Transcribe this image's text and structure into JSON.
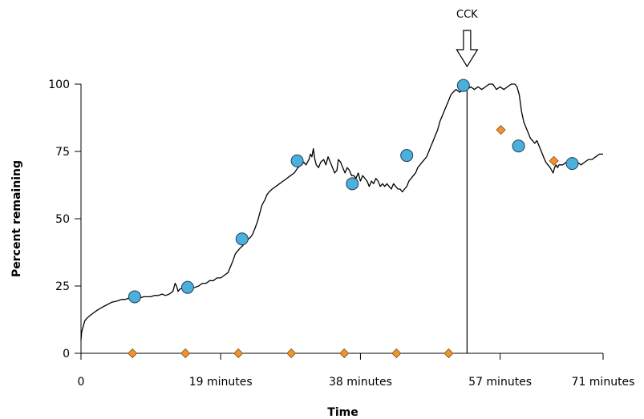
{
  "chart_data": {
    "type": "line",
    "title": "",
    "xlabel": "Time",
    "ylabel": "Percent remaining",
    "xlim": [
      0,
      71
    ],
    "ylim": [
      0,
      100
    ],
    "y_ticks": [
      0,
      25,
      50,
      75,
      100
    ],
    "x_ticks": [
      {
        "value": 0,
        "label": "0"
      },
      {
        "value": 19,
        "label": "19 minutes"
      },
      {
        "value": 38,
        "label": "38 minutes"
      },
      {
        "value": 57,
        "label": "57 minutes"
      },
      {
        "value": 71,
        "label": "71 minutes"
      }
    ],
    "grid": false,
    "legend": "none",
    "colors": {
      "trace": "#000000",
      "circle_fill": "#4bb0dc",
      "circle_stroke": "#1f3f5a",
      "diamond_fill": "#f0922e",
      "diamond_stroke": "#7a4a12"
    },
    "series": [
      {
        "style": "trace",
        "points": [
          [
            0.0,
            5
          ],
          [
            0.1,
            8
          ],
          [
            0.3,
            10
          ],
          [
            0.5,
            12
          ],
          [
            0.8,
            13
          ],
          [
            1.2,
            14
          ],
          [
            1.7,
            15
          ],
          [
            2.2,
            16
          ],
          [
            2.8,
            17
          ],
          [
            3.5,
            18
          ],
          [
            4.2,
            19
          ],
          [
            5.0,
            19.5
          ],
          [
            5.5,
            20
          ],
          [
            6.0,
            20
          ],
          [
            6.5,
            20.5
          ],
          [
            7.0,
            21
          ],
          [
            7.5,
            21
          ],
          [
            8.0,
            20.5
          ],
          [
            8.5,
            21
          ],
          [
            9.0,
            21
          ],
          [
            9.5,
            21
          ],
          [
            10.0,
            21.5
          ],
          [
            10.5,
            21.5
          ],
          [
            11.0,
            22
          ],
          [
            11.5,
            21.5
          ],
          [
            12.0,
            22
          ],
          [
            12.5,
            23
          ],
          [
            12.8,
            26
          ],
          [
            13.0,
            25
          ],
          [
            13.2,
            23
          ],
          [
            13.5,
            24
          ],
          [
            14.0,
            24
          ],
          [
            14.5,
            23
          ],
          [
            15.0,
            24
          ],
          [
            15.5,
            24.5
          ],
          [
            16.0,
            25
          ],
          [
            16.5,
            26
          ],
          [
            17.0,
            26
          ],
          [
            17.5,
            27
          ],
          [
            18.0,
            27
          ],
          [
            18.5,
            28
          ],
          [
            19.0,
            28
          ],
          [
            19.5,
            29
          ],
          [
            20.0,
            30
          ],
          [
            20.3,
            32
          ],
          [
            20.6,
            34
          ],
          [
            21.0,
            37
          ],
          [
            21.3,
            38
          ],
          [
            21.6,
            39
          ],
          [
            22.0,
            40
          ],
          [
            22.3,
            41
          ],
          [
            22.6,
            42
          ],
          [
            23.0,
            43
          ],
          [
            23.3,
            44
          ],
          [
            23.6,
            46
          ],
          [
            24.0,
            49
          ],
          [
            24.3,
            52
          ],
          [
            24.6,
            55
          ],
          [
            25.0,
            57
          ],
          [
            25.3,
            59
          ],
          [
            25.6,
            60
          ],
          [
            26.0,
            61
          ],
          [
            26.5,
            62
          ],
          [
            27.0,
            63
          ],
          [
            27.5,
            64
          ],
          [
            28.0,
            65
          ],
          [
            28.5,
            66
          ],
          [
            29.0,
            67
          ],
          [
            29.5,
            69
          ],
          [
            30.0,
            70
          ],
          [
            30.3,
            71
          ],
          [
            30.6,
            70
          ],
          [
            31.0,
            72
          ],
          [
            31.2,
            74
          ],
          [
            31.4,
            73
          ],
          [
            31.6,
            76
          ],
          [
            31.8,
            72
          ],
          [
            32.0,
            70
          ],
          [
            32.3,
            69
          ],
          [
            32.6,
            71
          ],
          [
            33.0,
            72
          ],
          [
            33.3,
            70
          ],
          [
            33.6,
            73
          ],
          [
            33.9,
            71
          ],
          [
            34.2,
            69
          ],
          [
            34.5,
            67
          ],
          [
            34.8,
            68
          ],
          [
            35.0,
            72
          ],
          [
            35.3,
            71
          ],
          [
            35.6,
            69
          ],
          [
            35.9,
            67
          ],
          [
            36.2,
            69
          ],
          [
            36.5,
            68
          ],
          [
            36.8,
            66
          ],
          [
            37.1,
            66
          ],
          [
            37.4,
            65
          ],
          [
            37.7,
            67
          ],
          [
            38.0,
            64
          ],
          [
            38.3,
            66
          ],
          [
            38.6,
            65
          ],
          [
            38.9,
            64
          ],
          [
            39.2,
            62
          ],
          [
            39.5,
            64
          ],
          [
            39.8,
            63
          ],
          [
            40.1,
            65
          ],
          [
            40.4,
            64
          ],
          [
            40.7,
            62
          ],
          [
            41.0,
            63
          ],
          [
            41.3,
            62
          ],
          [
            41.6,
            63
          ],
          [
            41.9,
            62
          ],
          [
            42.2,
            61
          ],
          [
            42.5,
            63
          ],
          [
            42.8,
            62
          ],
          [
            43.1,
            61
          ],
          [
            43.4,
            61
          ],
          [
            43.7,
            60
          ],
          [
            44.0,
            61
          ],
          [
            44.3,
            62
          ],
          [
            44.6,
            64
          ],
          [
            44.9,
            65
          ],
          [
            45.2,
            66
          ],
          [
            45.5,
            67
          ],
          [
            45.8,
            69
          ],
          [
            46.1,
            70
          ],
          [
            46.4,
            71
          ],
          [
            46.7,
            72
          ],
          [
            47.0,
            73
          ],
          [
            47.3,
            75
          ],
          [
            47.6,
            77
          ],
          [
            47.9,
            79
          ],
          [
            48.2,
            81
          ],
          [
            48.5,
            83
          ],
          [
            48.8,
            86
          ],
          [
            49.1,
            88
          ],
          [
            49.4,
            90
          ],
          [
            49.7,
            92
          ],
          [
            50.0,
            94
          ],
          [
            50.3,
            96
          ],
          [
            50.6,
            97
          ],
          [
            51.0,
            98
          ],
          [
            51.5,
            97
          ],
          [
            52.0,
            98
          ],
          [
            52.5,
            98
          ],
          [
            53.0,
            99
          ],
          [
            53.5,
            98
          ],
          [
            54.0,
            99
          ],
          [
            54.5,
            98
          ],
          [
            55.0,
            99
          ],
          [
            55.5,
            100
          ],
          [
            56.0,
            100
          ],
          [
            56.5,
            98
          ],
          [
            57.0,
            99
          ],
          [
            57.5,
            98
          ],
          [
            58.0,
            99
          ],
          [
            58.5,
            100
          ],
          [
            59.0,
            100
          ],
          [
            59.3,
            99
          ],
          [
            59.6,
            96
          ],
          [
            59.9,
            90
          ],
          [
            60.2,
            86
          ],
          [
            60.5,
            84
          ],
          [
            60.8,
            82
          ],
          [
            61.1,
            80
          ],
          [
            61.4,
            79
          ],
          [
            61.7,
            78
          ],
          [
            62.0,
            79
          ],
          [
            62.3,
            77
          ],
          [
            62.6,
            75
          ],
          [
            62.9,
            73
          ],
          [
            63.2,
            71
          ],
          [
            63.5,
            70
          ],
          [
            63.8,
            69
          ],
          [
            64.0,
            68
          ],
          [
            64.2,
            67
          ],
          [
            64.4,
            69
          ],
          [
            64.6,
            70
          ],
          [
            64.8,
            69
          ],
          [
            65.0,
            70
          ],
          [
            65.5,
            70
          ],
          [
            66.0,
            71
          ],
          [
            66.5,
            70
          ],
          [
            67.0,
            70
          ],
          [
            67.5,
            71
          ],
          [
            68.0,
            70
          ],
          [
            68.5,
            71
          ],
          [
            69.0,
            72
          ],
          [
            69.5,
            72
          ],
          [
            70.0,
            73
          ],
          [
            70.5,
            74
          ],
          [
            71.0,
            74
          ]
        ]
      },
      {
        "style": "circle-markers",
        "points": [
          [
            7.3,
            21
          ],
          [
            14.5,
            24.5
          ],
          [
            21.9,
            42.5
          ],
          [
            29.4,
            71.5
          ],
          [
            36.9,
            63
          ],
          [
            44.3,
            73.5
          ],
          [
            52.0,
            99.5
          ],
          [
            59.5,
            77
          ],
          [
            66.8,
            70.5
          ]
        ]
      },
      {
        "style": "diamond-markers",
        "points": [
          [
            7.0,
            0
          ],
          [
            14.2,
            0
          ],
          [
            21.4,
            0
          ],
          [
            28.6,
            0
          ],
          [
            35.8,
            0
          ],
          [
            42.9,
            0
          ],
          [
            50.0,
            0
          ],
          [
            57.1,
            83
          ],
          [
            64.3,
            71.5
          ]
        ]
      }
    ],
    "annotations": [
      {
        "label": "CCK",
        "x": 52.5,
        "marker": "down-arrow",
        "vline_from": 0,
        "vline_to": 100
      }
    ]
  }
}
